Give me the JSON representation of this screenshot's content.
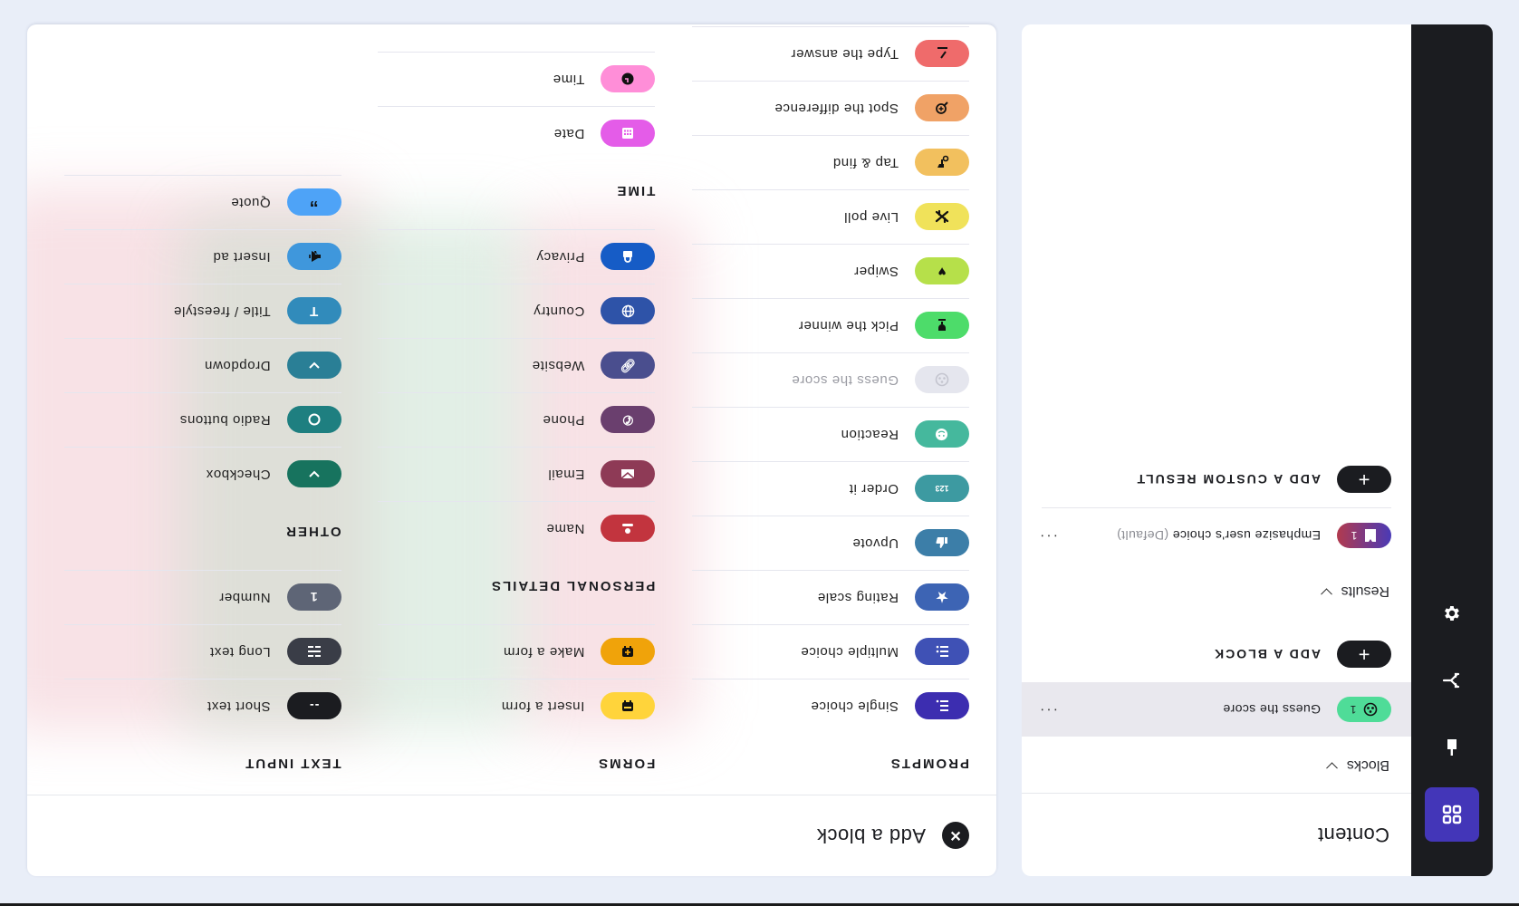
{
  "sidebar": {
    "items": [
      {
        "id": "content",
        "icon": "grid-icon",
        "active": true
      },
      {
        "id": "design",
        "icon": "paintbrush-icon",
        "active": false
      },
      {
        "id": "logic",
        "icon": "branch-icon",
        "active": false
      },
      {
        "id": "settings",
        "icon": "gear-icon",
        "active": false
      }
    ]
  },
  "content_panel": {
    "title": "Content",
    "blocks_section": "Blocks",
    "blocks": [
      {
        "name": "Guess the score",
        "count": "1",
        "icon": "soccer-ball-icon",
        "color": "#4fdc98",
        "selected": true
      }
    ],
    "add_block_label": "ADD A BLOCK",
    "results_section": "Results",
    "results": [
      {
        "name": "Emphasize user's choice",
        "suffix": "(Default)",
        "count": "1",
        "icon": "shirt-icon",
        "gradient": [
          "#4a3ab6",
          "#b23a4e"
        ]
      }
    ],
    "add_result_label": "ADD A CUSTOM RESULT"
  },
  "modal": {
    "title": "Add a block",
    "close_icon": "close-icon",
    "columns": [
      {
        "sections": [
          {
            "title": "PROMPTS",
            "items": [
              {
                "label": "Single choice",
                "icon": "single-choice-icon",
                "color": "#3c2db0"
              },
              {
                "label": "Multiple choice",
                "icon": "multiple-choice-icon",
                "color": "#3f51b5"
              },
              {
                "label": "Rating scale",
                "icon": "star-icon",
                "color": "#3d64b4"
              },
              {
                "label": "Upvote",
                "icon": "thumbs-up-icon",
                "color": "#3c7ea8"
              },
              {
                "label": "Order it",
                "icon": "123-icon",
                "color": "#3d9aa1"
              },
              {
                "label": "Reaction",
                "icon": "smiley-icon",
                "color": "#45b89d"
              },
              {
                "label": "Guess the score",
                "icon": "soccer-ball-icon",
                "color": "#e5e6ee",
                "disabled": true
              },
              {
                "label": "Pick the winner",
                "icon": "trophy-icon",
                "color": "#4ddc6a"
              },
              {
                "label": "Swiper",
                "icon": "heart-icon",
                "color": "#b6e04a"
              },
              {
                "label": "Live poll",
                "icon": "poll-icon",
                "color": "#f0e25a"
              },
              {
                "label": "Tap & find",
                "icon": "tap-icon",
                "color": "#f2c05e"
              },
              {
                "label": "Spot the difference",
                "icon": "magnifier-icon",
                "color": "#f0a266"
              },
              {
                "label": "Type the answer",
                "icon": "pencil-icon",
                "color": "#ef6b6b"
              }
            ]
          }
        ]
      },
      {
        "sections": [
          {
            "title": "FORMS",
            "items": [
              {
                "label": "Insert a form",
                "icon": "form-icon",
                "color": "#ffd43b"
              },
              {
                "label": "Make a form",
                "icon": "add-form-icon",
                "color": "#f0a30a"
              }
            ]
          },
          {
            "title": "PERSONAL DETAILS",
            "items": [
              {
                "label": "Name",
                "icon": "person-icon",
                "color": "#c2343e"
              },
              {
                "label": "Email",
                "icon": "envelope-icon",
                "color": "#8e3a56"
              },
              {
                "label": "Phone",
                "icon": "phone-icon",
                "color": "#6a3f6e"
              },
              {
                "label": "Website",
                "icon": "link-icon",
                "color": "#4a4e8e"
              },
              {
                "label": "Country",
                "icon": "globe-icon",
                "color": "#2e53a8"
              },
              {
                "label": "Privacy",
                "icon": "lock-icon",
                "color": "#165cc6"
              }
            ]
          },
          {
            "title": "TIME",
            "items": [
              {
                "label": "Date",
                "icon": "calendar-icon",
                "color": "#e45ce8"
              },
              {
                "label": "Time",
                "icon": "clock-icon",
                "color": "#ff8ed8"
              }
            ]
          }
        ]
      },
      {
        "sections": [
          {
            "title": "TEXT INPUT",
            "items": [
              {
                "label": "Short text",
                "icon": "short-text-icon",
                "color": "#1b1c20"
              },
              {
                "label": "Long text",
                "icon": "long-text-icon",
                "color": "#3a3d47"
              },
              {
                "label": "Number",
                "icon": "number-icon",
                "color": "#5e6576"
              }
            ]
          },
          {
            "title": "OTHER",
            "items": [
              {
                "label": "Checkbox",
                "icon": "checkmark-icon",
                "color": "#17735e"
              },
              {
                "label": "Radio buttons",
                "icon": "radio-icon",
                "color": "#1e7f80"
              },
              {
                "label": "Dropdown",
                "icon": "chevron-down-icon",
                "color": "#2a7f96"
              },
              {
                "label": "Title / freestyle",
                "icon": "text-t-icon",
                "color": "#318bbb"
              },
              {
                "label": "Insert ad",
                "icon": "megaphone-icon",
                "color": "#3f97dc"
              },
              {
                "label": "Quote",
                "icon": "quote-icon",
                "color": "#4ea3f7"
              }
            ]
          }
        ]
      }
    ]
  }
}
